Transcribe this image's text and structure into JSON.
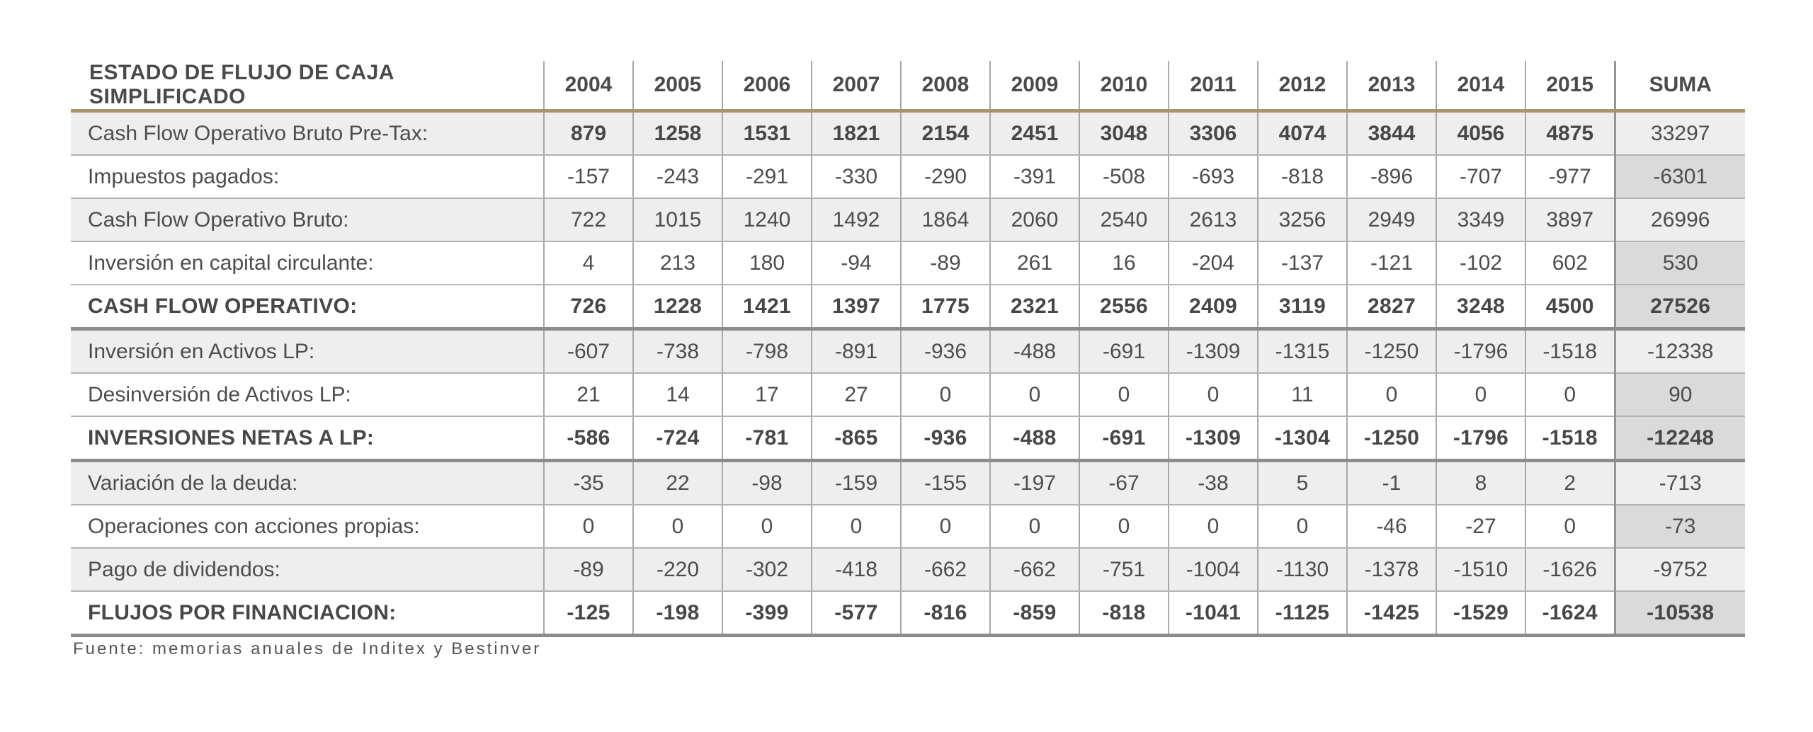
{
  "table": {
    "header": {
      "label": "ESTADO DE FLUJO DE CAJA SIMPLIFICADO",
      "years": [
        "2004",
        "2005",
        "2006",
        "2007",
        "2008",
        "2009",
        "2010",
        "2011",
        "2012",
        "2013",
        "2014",
        "2015"
      ],
      "suma_label": "SUMA"
    },
    "rows": [
      {
        "label": "Cash Flow Operativo Bruto Pre-Tax:",
        "values": [
          879,
          1258,
          1531,
          1821,
          2154,
          2451,
          3048,
          3306,
          4074,
          3844,
          4056,
          4875
        ],
        "suma": 33297,
        "shaded": true,
        "values_bold": true,
        "bold_all": false,
        "section_end": false
      },
      {
        "label": "Impuestos pagados:",
        "values": [
          -157,
          -243,
          -291,
          -330,
          -290,
          -391,
          -508,
          -693,
          -818,
          -896,
          -707,
          -977
        ],
        "suma": -6301,
        "shaded": false,
        "values_bold": false,
        "bold_all": false,
        "section_end": false
      },
      {
        "label": "Cash Flow Operativo Bruto:",
        "values": [
          722,
          1015,
          1240,
          1492,
          1864,
          2060,
          2540,
          2613,
          3256,
          2949,
          3349,
          3897
        ],
        "suma": 26996,
        "shaded": true,
        "values_bold": false,
        "bold_all": false,
        "section_end": false
      },
      {
        "label": "Inversión en capital circulante:",
        "values": [
          4,
          213,
          180,
          -94,
          -89,
          261,
          16,
          -204,
          -137,
          -121,
          -102,
          602
        ],
        "suma": 530,
        "shaded": false,
        "values_bold": false,
        "bold_all": false,
        "section_end": false
      },
      {
        "label": "CASH FLOW OPERATIVO:",
        "values": [
          726,
          1228,
          1421,
          1397,
          1775,
          2321,
          2556,
          2409,
          3119,
          2827,
          3248,
          4500
        ],
        "suma": 27526,
        "shaded": false,
        "values_bold": false,
        "bold_all": true,
        "section_end": true
      },
      {
        "label": "Inversión en Activos LP:",
        "values": [
          -607,
          -738,
          -798,
          -891,
          -936,
          -488,
          -691,
          -1309,
          -1315,
          -1250,
          -1796,
          -1518
        ],
        "suma": -12338,
        "shaded": true,
        "values_bold": false,
        "bold_all": false,
        "section_end": false
      },
      {
        "label": "Desinversión de Activos LP:",
        "values": [
          21,
          14,
          17,
          27,
          0,
          0,
          0,
          0,
          11,
          0,
          0,
          0
        ],
        "suma": 90,
        "shaded": false,
        "values_bold": false,
        "bold_all": false,
        "section_end": false
      },
      {
        "label": "INVERSIONES NETAS A LP:",
        "values": [
          -586,
          -724,
          -781,
          -865,
          -936,
          -488,
          -691,
          -1309,
          -1304,
          -1250,
          -1796,
          -1518
        ],
        "suma": -12248,
        "shaded": false,
        "values_bold": false,
        "bold_all": true,
        "section_end": true
      },
      {
        "label": "Variación de la deuda:",
        "values": [
          -35,
          22,
          -98,
          -159,
          -155,
          -197,
          -67,
          -38,
          5,
          -1,
          8,
          2
        ],
        "suma": -713,
        "shaded": true,
        "values_bold": false,
        "bold_all": false,
        "section_end": false
      },
      {
        "label": "Operaciones con acciones propias:",
        "values": [
          0,
          0,
          0,
          0,
          0,
          0,
          0,
          0,
          0,
          -46,
          -27,
          0
        ],
        "suma": -73,
        "shaded": false,
        "values_bold": false,
        "bold_all": false,
        "section_end": false
      },
      {
        "label": "Pago de dividendos:",
        "values": [
          -89,
          -220,
          -302,
          -418,
          -662,
          -662,
          -751,
          -1004,
          -1130,
          -1378,
          -1510,
          -1626
        ],
        "suma": -9752,
        "shaded": true,
        "values_bold": false,
        "bold_all": false,
        "section_end": false
      },
      {
        "label": "FLUJOS POR FINANCIACION:",
        "values": [
          -125,
          -198,
          -399,
          -577,
          -816,
          -859,
          -818,
          -1041,
          -1125,
          -1425,
          -1529,
          -1624
        ],
        "suma": -10538,
        "shaded": false,
        "values_bold": false,
        "bold_all": true,
        "section_end": true
      }
    ]
  },
  "footer": {
    "source": "Fuente: memorias anuales de Inditex y Bestinver"
  },
  "colors": {
    "accent_line": "#ab9468",
    "shaded_row_bg": "#eeeeee",
    "suma_col_bg": "#dadada",
    "thin_border": "#b2b2b2",
    "thick_border": "#8c8c8c",
    "column_line": "#a8a8a8",
    "text": "#4d4d4d"
  },
  "layout": {
    "label_col_width": 668,
    "year_col_width": 126,
    "suma_col_width": 184
  }
}
